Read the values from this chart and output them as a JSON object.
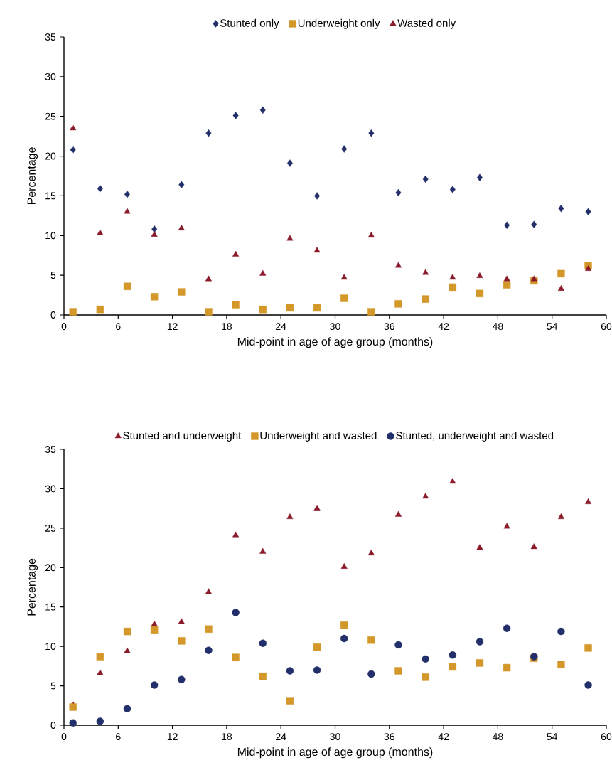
{
  "chart_data": [
    {
      "type": "scatter",
      "xlabel": "Mid-point in age of age group (months)",
      "ylabel": "Percentage",
      "x": [
        1,
        4,
        7,
        10,
        13,
        16,
        19,
        22,
        25,
        28,
        31,
        34,
        37,
        40,
        43,
        46,
        49,
        52,
        55,
        58
      ],
      "xlim": [
        0,
        60
      ],
      "xticks": [
        0,
        6,
        12,
        18,
        24,
        30,
        36,
        42,
        48,
        54,
        60
      ],
      "ylim": [
        0,
        35
      ],
      "yticks": [
        0,
        5,
        10,
        15,
        20,
        25,
        30,
        35
      ],
      "legend": "top",
      "grid": false,
      "series": [
        {
          "name": "Stunted only",
          "color": "#232f6b",
          "marker": "diamond",
          "values": [
            20.8,
            15.9,
            15.2,
            10.8,
            16.4,
            22.9,
            25.1,
            25.8,
            19.1,
            15.0,
            20.9,
            22.9,
            15.4,
            17.1,
            15.8,
            17.3,
            11.3,
            11.4,
            13.4,
            13.0
          ]
        },
        {
          "name": "Underweight only",
          "color": "#d4982a",
          "marker": "square",
          "values": [
            0.4,
            0.7,
            3.6,
            2.3,
            2.9,
            0.4,
            1.3,
            0.7,
            0.9,
            0.9,
            2.1,
            0.4,
            1.4,
            2.0,
            3.5,
            2.7,
            3.8,
            4.3,
            5.2,
            6.2
          ]
        },
        {
          "name": "Wasted only",
          "color": "#8b1a2a",
          "marker": "triangle",
          "values": [
            23.5,
            10.3,
            13.0,
            10.1,
            10.9,
            4.5,
            7.6,
            5.2,
            9.6,
            8.1,
            4.7,
            10.0,
            6.2,
            5.3,
            4.7,
            4.9,
            4.5,
            4.5,
            3.3,
            5.8
          ]
        }
      ]
    },
    {
      "type": "scatter",
      "xlabel": "Mid-point in age of age group (months)",
      "ylabel": "Percentage",
      "x": [
        1,
        4,
        7,
        10,
        13,
        16,
        19,
        22,
        25,
        28,
        31,
        34,
        37,
        40,
        43,
        46,
        49,
        52,
        55,
        58
      ],
      "xlim": [
        0,
        60
      ],
      "xticks": [
        0,
        6,
        12,
        18,
        24,
        30,
        36,
        42,
        48,
        54,
        60
      ],
      "ylim": [
        0,
        35
      ],
      "yticks": [
        0,
        5,
        10,
        15,
        20,
        25,
        30,
        35
      ],
      "legend": "top",
      "grid": false,
      "series": [
        {
          "name": "Stunted and underweight",
          "color": "#8b1a2a",
          "marker": "triangle",
          "values": [
            2.6,
            6.6,
            9.4,
            12.8,
            13.1,
            16.9,
            24.1,
            22.0,
            26.4,
            27.5,
            20.1,
            21.8,
            26.7,
            29.0,
            30.9,
            22.5,
            25.2,
            22.6,
            26.4,
            28.3
          ]
        },
        {
          "name": "Underweight and wasted",
          "color": "#d4982a",
          "marker": "square",
          "values": [
            2.3,
            8.7,
            11.9,
            12.1,
            10.7,
            12.2,
            8.6,
            6.2,
            3.1,
            9.9,
            12.7,
            10.8,
            6.9,
            6.1,
            7.4,
            7.9,
            7.3,
            8.5,
            7.7,
            9.8
          ]
        },
        {
          "name": "Stunted, underweight and wasted",
          "color": "#232f6b",
          "marker": "circle",
          "values": [
            0.3,
            0.5,
            2.1,
            5.1,
            5.8,
            9.5,
            14.3,
            10.4,
            6.9,
            7.0,
            11.0,
            6.5,
            10.2,
            8.4,
            8.9,
            10.6,
            12.3,
            8.7,
            11.9,
            5.1
          ]
        }
      ]
    }
  ]
}
